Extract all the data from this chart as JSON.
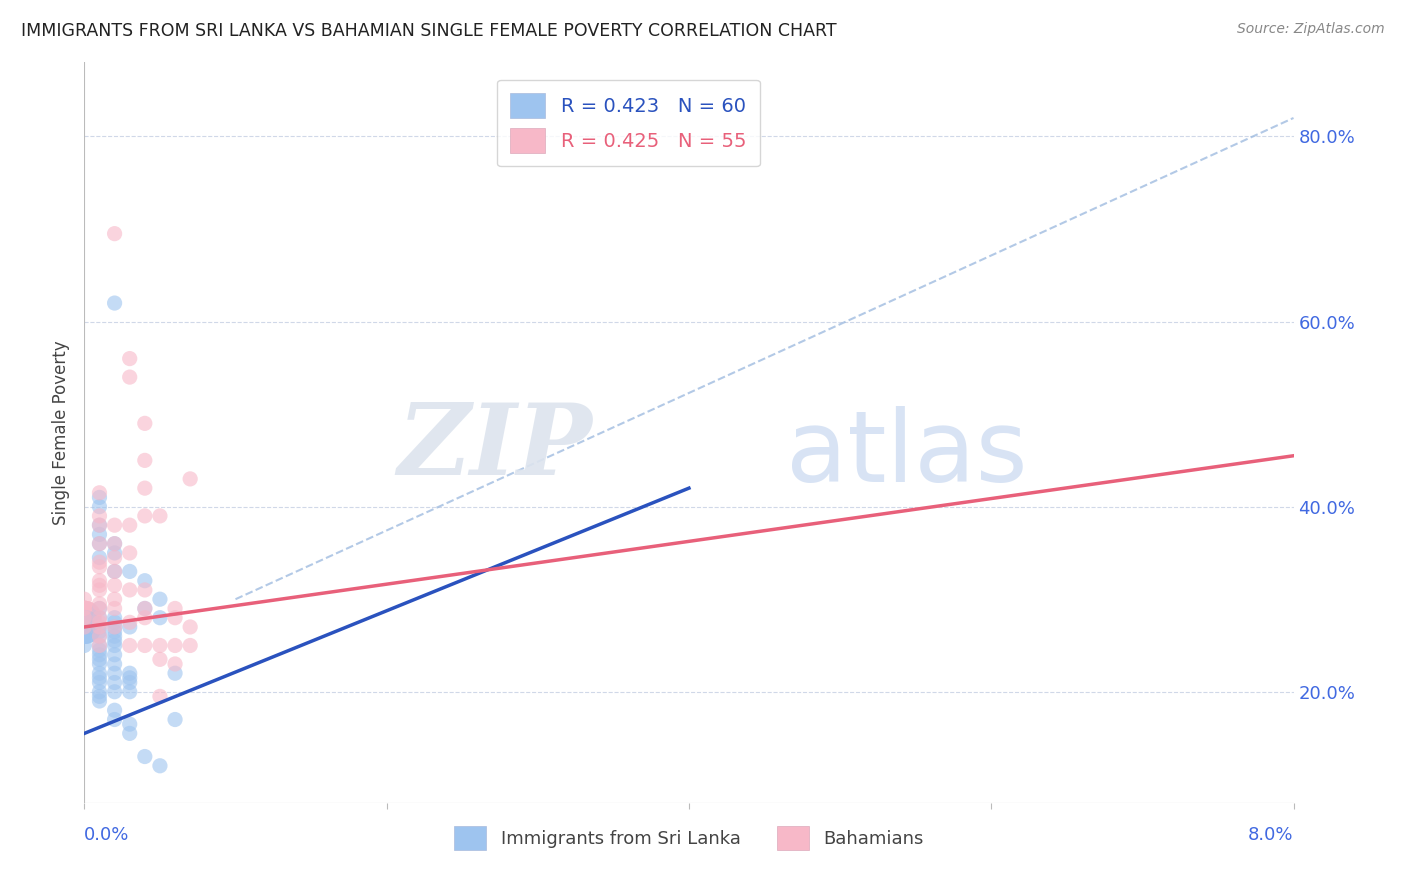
{
  "title": "IMMIGRANTS FROM SRI LANKA VS BAHAMIAN SINGLE FEMALE POVERTY CORRELATION CHART",
  "source": "Source: ZipAtlas.com",
  "ylabel": "Single Female Poverty",
  "y_ticks": [
    0.2,
    0.4,
    0.6,
    0.8
  ],
  "y_tick_labels": [
    "20.0%",
    "40.0%",
    "60.0%",
    "80.0%"
  ],
  "x_ticks": [
    0.0,
    0.02,
    0.04,
    0.06,
    0.08
  ],
  "sri_lanka_color": "#9ec4ef",
  "bahamians_color": "#f7b8c8",
  "sri_lanka_line_color": "#2a52be",
  "bahamians_line_color": "#e8607a",
  "dashed_line_color": "#a0bce0",
  "watermark_zip": "ZIP",
  "watermark_atlas": "atlas",
  "xlim": [
    0.0,
    0.08
  ],
  "ylim": [
    0.08,
    0.88
  ],
  "background_color": "#ffffff",
  "sri_lanka_points": [
    [
      0.0,
      0.27
    ],
    [
      0.0,
      0.25
    ],
    [
      0.0,
      0.26
    ],
    [
      0.0,
      0.265
    ],
    [
      0.001,
      0.19
    ],
    [
      0.001,
      0.2
    ],
    [
      0.001,
      0.195
    ],
    [
      0.001,
      0.21
    ],
    [
      0.001,
      0.215
    ],
    [
      0.001,
      0.22
    ],
    [
      0.001,
      0.23
    ],
    [
      0.001,
      0.235
    ],
    [
      0.001,
      0.24
    ],
    [
      0.001,
      0.245
    ],
    [
      0.001,
      0.25
    ],
    [
      0.001,
      0.26
    ],
    [
      0.001,
      0.265
    ],
    [
      0.001,
      0.27
    ],
    [
      0.001,
      0.28
    ],
    [
      0.001,
      0.29
    ],
    [
      0.001,
      0.345
    ],
    [
      0.001,
      0.36
    ],
    [
      0.001,
      0.37
    ],
    [
      0.001,
      0.38
    ],
    [
      0.001,
      0.4
    ],
    [
      0.001,
      0.41
    ],
    [
      0.002,
      0.17
    ],
    [
      0.002,
      0.18
    ],
    [
      0.002,
      0.2
    ],
    [
      0.002,
      0.21
    ],
    [
      0.002,
      0.22
    ],
    [
      0.002,
      0.23
    ],
    [
      0.002,
      0.24
    ],
    [
      0.002,
      0.25
    ],
    [
      0.002,
      0.255
    ],
    [
      0.002,
      0.26
    ],
    [
      0.002,
      0.265
    ],
    [
      0.002,
      0.27
    ],
    [
      0.002,
      0.275
    ],
    [
      0.002,
      0.28
    ],
    [
      0.002,
      0.33
    ],
    [
      0.002,
      0.35
    ],
    [
      0.002,
      0.36
    ],
    [
      0.003,
      0.155
    ],
    [
      0.003,
      0.165
    ],
    [
      0.003,
      0.2
    ],
    [
      0.003,
      0.21
    ],
    [
      0.003,
      0.215
    ],
    [
      0.003,
      0.22
    ],
    [
      0.003,
      0.27
    ],
    [
      0.003,
      0.33
    ],
    [
      0.004,
      0.13
    ],
    [
      0.004,
      0.29
    ],
    [
      0.004,
      0.32
    ],
    [
      0.005,
      0.12
    ],
    [
      0.005,
      0.28
    ],
    [
      0.005,
      0.3
    ],
    [
      0.006,
      0.17
    ],
    [
      0.006,
      0.22
    ],
    [
      0.002,
      0.62
    ]
  ],
  "bahamians_points": [
    [
      0.0,
      0.27
    ],
    [
      0.0,
      0.28
    ],
    [
      0.0,
      0.29
    ],
    [
      0.0,
      0.3
    ],
    [
      0.001,
      0.25
    ],
    [
      0.001,
      0.26
    ],
    [
      0.001,
      0.27
    ],
    [
      0.001,
      0.275
    ],
    [
      0.001,
      0.28
    ],
    [
      0.001,
      0.29
    ],
    [
      0.001,
      0.295
    ],
    [
      0.001,
      0.31
    ],
    [
      0.001,
      0.315
    ],
    [
      0.001,
      0.32
    ],
    [
      0.001,
      0.335
    ],
    [
      0.001,
      0.34
    ],
    [
      0.001,
      0.36
    ],
    [
      0.001,
      0.38
    ],
    [
      0.001,
      0.39
    ],
    [
      0.001,
      0.415
    ],
    [
      0.002,
      0.27
    ],
    [
      0.002,
      0.29
    ],
    [
      0.002,
      0.3
    ],
    [
      0.002,
      0.315
    ],
    [
      0.002,
      0.33
    ],
    [
      0.002,
      0.345
    ],
    [
      0.002,
      0.36
    ],
    [
      0.002,
      0.38
    ],
    [
      0.003,
      0.25
    ],
    [
      0.003,
      0.275
    ],
    [
      0.003,
      0.31
    ],
    [
      0.003,
      0.35
    ],
    [
      0.003,
      0.38
    ],
    [
      0.004,
      0.25
    ],
    [
      0.004,
      0.28
    ],
    [
      0.004,
      0.29
    ],
    [
      0.004,
      0.31
    ],
    [
      0.004,
      0.39
    ],
    [
      0.004,
      0.42
    ],
    [
      0.004,
      0.45
    ],
    [
      0.005,
      0.195
    ],
    [
      0.005,
      0.235
    ],
    [
      0.005,
      0.25
    ],
    [
      0.005,
      0.39
    ],
    [
      0.006,
      0.23
    ],
    [
      0.006,
      0.25
    ],
    [
      0.006,
      0.28
    ],
    [
      0.006,
      0.29
    ],
    [
      0.007,
      0.25
    ],
    [
      0.007,
      0.27
    ],
    [
      0.007,
      0.43
    ],
    [
      0.003,
      0.54
    ],
    [
      0.003,
      0.56
    ],
    [
      0.004,
      0.49
    ],
    [
      0.002,
      0.695
    ]
  ],
  "sri_lanka_reg": [
    0.0,
    0.04,
    0.155,
    0.42
  ],
  "bahamians_reg": [
    0.0,
    0.08,
    0.27,
    0.455
  ],
  "dashed_reg": [
    0.01,
    0.08,
    0.3,
    0.82
  ]
}
